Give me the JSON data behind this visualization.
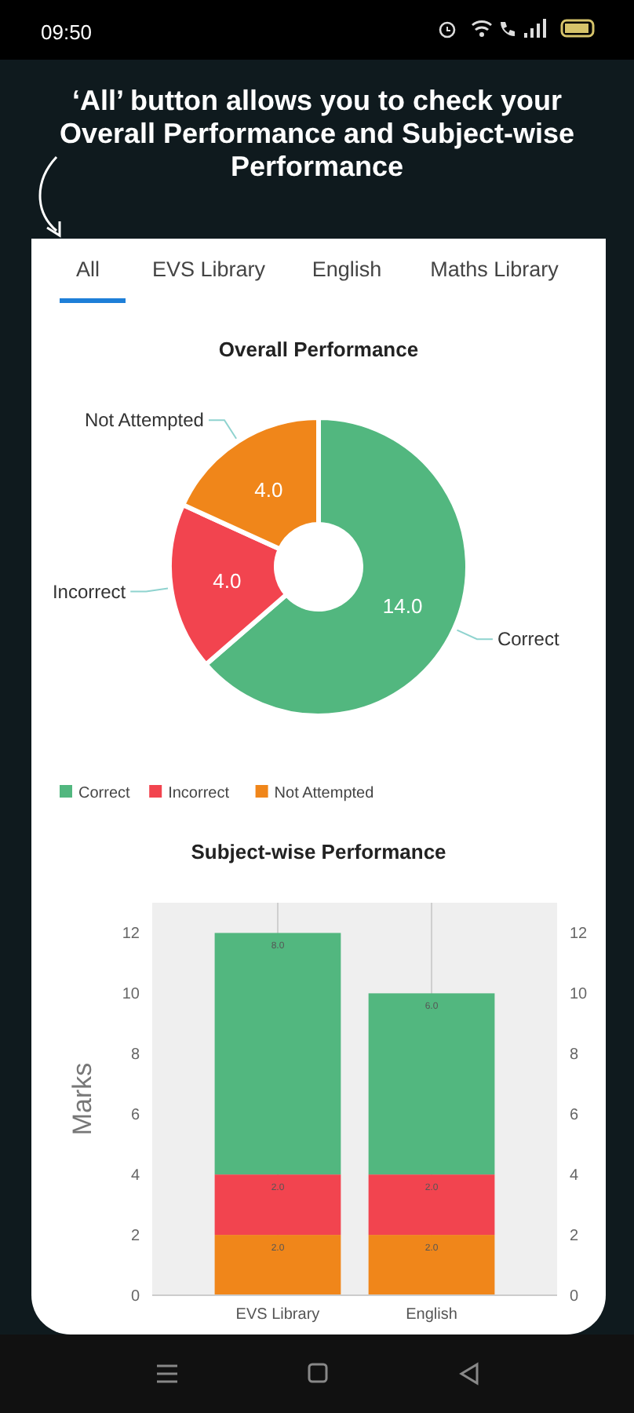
{
  "chart_data": [
    {
      "type": "donut",
      "title": "Overall Performance",
      "categories": [
        "Correct",
        "Incorrect",
        "Not Attempted"
      ],
      "values": [
        14,
        4,
        4
      ],
      "value_labels": [
        "14.0",
        "4.0",
        "4.0"
      ],
      "colors": [
        "#52b77f",
        "#f2444f",
        "#f0861a"
      ],
      "legend": "bottom",
      "annotations": [
        "09:50",
        "‘All’ button allows you to check your Overall Performance and Subject-wise Performance",
        "All",
        "EVS Library",
        "English",
        "Maths Library"
      ]
    },
    {
      "type": "bar",
      "title": "Subject-wise Performance",
      "stacked": true,
      "categories": [
        "EVS Library",
        "English"
      ],
      "ylabel": "Marks",
      "ylim": [
        0,
        13
      ],
      "yticks": [
        0,
        2,
        4,
        6,
        8,
        10,
        12
      ],
      "y2lim": [
        0,
        13
      ],
      "y2ticks": [
        0,
        2,
        4,
        6,
        8,
        10,
        12
      ],
      "grid": "x",
      "series": [
        {
          "color": "#f0861a",
          "values": [
            2,
            2
          ],
          "value_labels": [
            "2.0",
            "2.0"
          ]
        },
        {
          "color": "#f2444f",
          "values": [
            2,
            2
          ],
          "value_labels": [
            "2.0",
            "2.0"
          ]
        },
        {
          "color": "#52b77f",
          "values": [
            8,
            6
          ],
          "value_labels": [
            "8.0",
            "6.0"
          ]
        }
      ]
    }
  ]
}
